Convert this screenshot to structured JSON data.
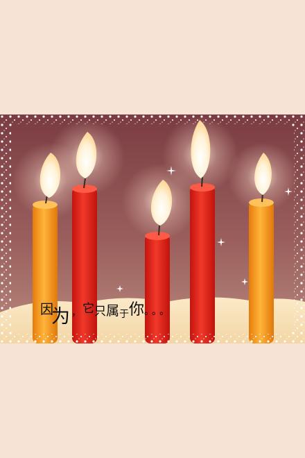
{
  "caption": {
    "text": "因为，它只属于你。。。",
    "chars": [
      "因",
      "为",
      "，",
      "它",
      "只",
      "属",
      "于",
      "你",
      "。。。"
    ]
  },
  "colors": {
    "page_background": "#f7e2d6",
    "photo_background": "#8a4f50",
    "frame_sparkle": "#ffffff",
    "candle_orange": "#f39a1a",
    "candle_red": "#e2231a",
    "flame": "#fff6e0"
  },
  "scene": {
    "subject": "five-lit-candles",
    "candle_colors": [
      "orange",
      "red",
      "red",
      "red",
      "orange"
    ]
  }
}
